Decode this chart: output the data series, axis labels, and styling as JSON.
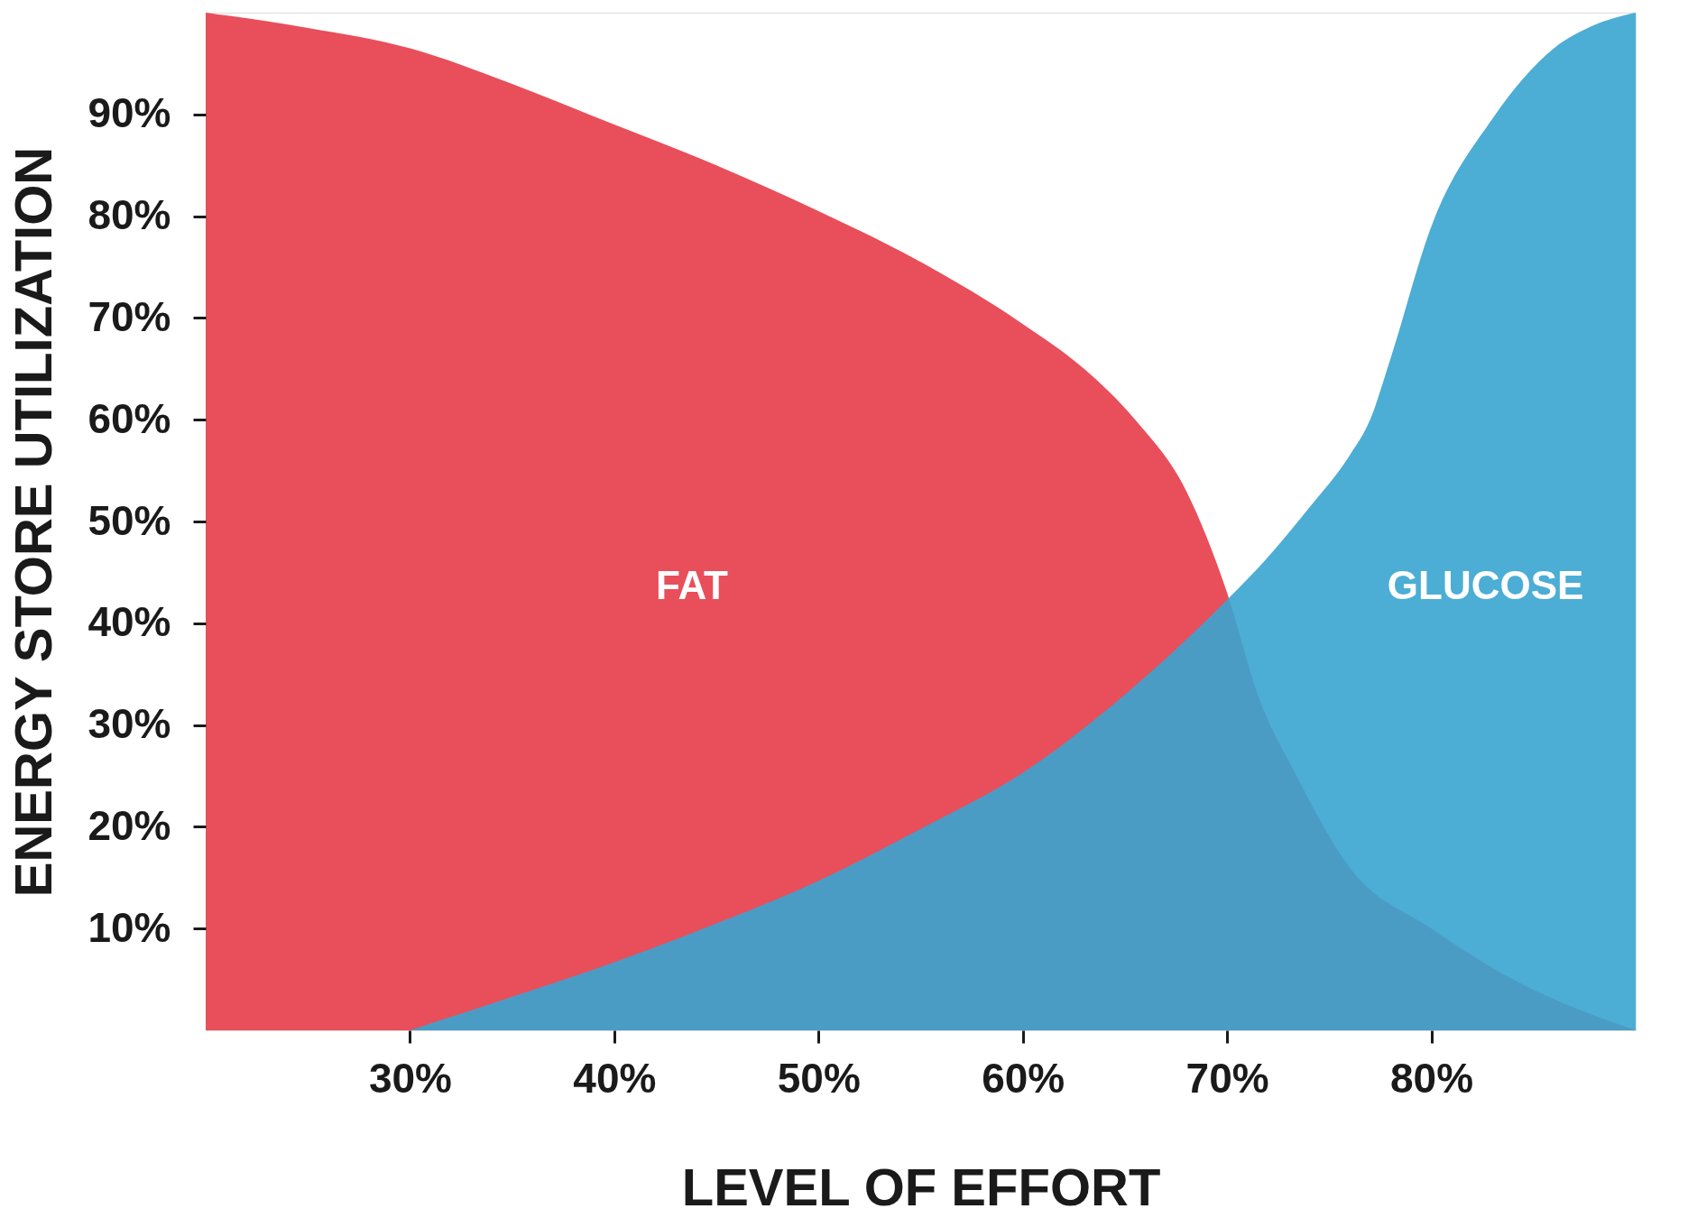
{
  "chart_data": {
    "type": "area",
    "xlabel": "LEVEL OF EFFORT",
    "ylabel": "ENERGY STORE UTILIZATION",
    "xlim": [
      20,
      90
    ],
    "ylim": [
      0,
      100
    ],
    "xticks": [
      {
        "value": 30,
        "label": "30%"
      },
      {
        "value": 40,
        "label": "40%"
      },
      {
        "value": 50,
        "label": "50%"
      },
      {
        "value": 60,
        "label": "60%"
      },
      {
        "value": 70,
        "label": "70%"
      },
      {
        "value": 80,
        "label": "80%"
      }
    ],
    "yticks": [
      {
        "value": 10,
        "label": "10%"
      },
      {
        "value": 20,
        "label": "20%"
      },
      {
        "value": 30,
        "label": "30%"
      },
      {
        "value": 40,
        "label": "40%"
      },
      {
        "value": 50,
        "label": "50%"
      },
      {
        "value": 60,
        "label": "60%"
      },
      {
        "value": 70,
        "label": "70%"
      },
      {
        "value": 80,
        "label": "80%"
      },
      {
        "value": 90,
        "label": "90%"
      }
    ],
    "grid": false,
    "legend": false,
    "series": [
      {
        "name": "FAT",
        "color": "#e84f5b",
        "x": [
          20,
          25,
          30,
          35,
          40,
          45,
          50,
          55,
          60,
          63,
          65.5,
          68,
          70,
          71.5,
          73.4,
          76,
          80,
          84,
          90
        ],
        "values": [
          100,
          98.5,
          96.5,
          93,
          89,
          85,
          80.5,
          75.5,
          69.4,
          65,
          60,
          53,
          43,
          33,
          25,
          16,
          10,
          5,
          0
        ]
      },
      {
        "name": "GLUCOSE",
        "color": "#38a4d0",
        "x": [
          30,
          35,
          40,
          45,
          50,
          55,
          60,
          65,
          70,
          72,
          74,
          76,
          77,
          78,
          80,
          83,
          86,
          88,
          90
        ],
        "values": [
          0,
          3.3,
          6.7,
          10.5,
          14.7,
          19.8,
          25.3,
          33,
          42.3,
          46.5,
          51.3,
          56.5,
          60,
          66,
          79,
          89.6,
          96.5,
          98.8,
          100
        ]
      }
    ]
  }
}
